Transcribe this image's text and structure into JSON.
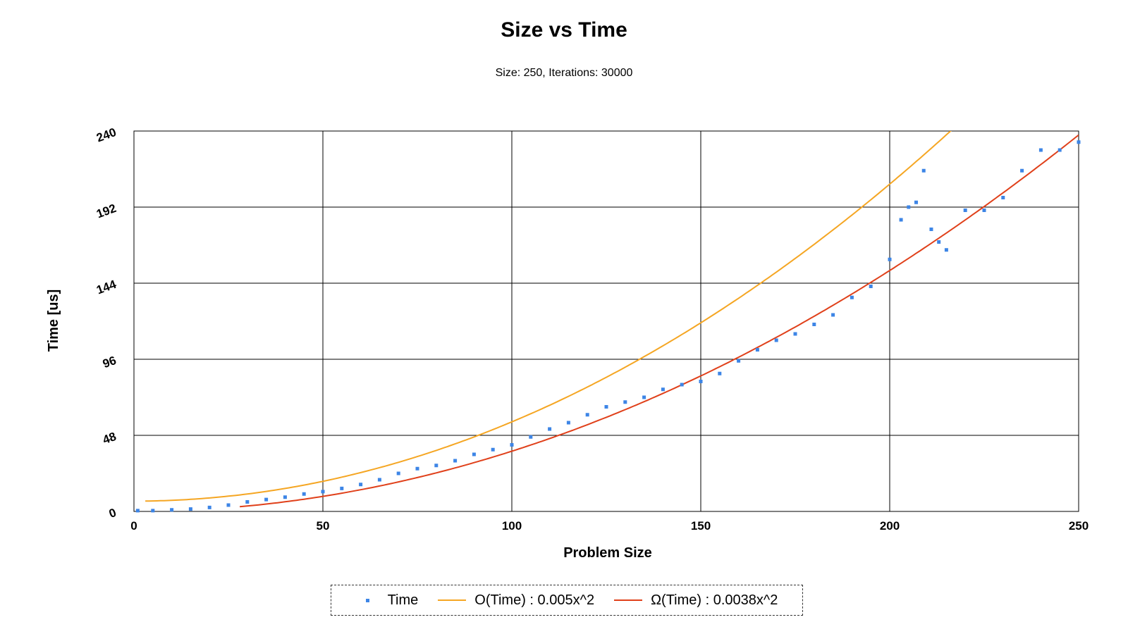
{
  "chart_data": {
    "type": "scatter",
    "title": "Size vs Time",
    "subtitle": "Size: 250, Iterations: 30000",
    "xlabel": "Problem Size",
    "ylabel": "Time [us]",
    "xlim": [
      0,
      250
    ],
    "ylim": [
      0,
      240
    ],
    "xticks": [
      0,
      50,
      100,
      150,
      200,
      250
    ],
    "yticks": [
      0,
      48,
      96,
      144,
      192,
      240
    ],
    "grid": true,
    "legend_position": "bottom-center",
    "colors": {
      "time": "#3d85e6",
      "upper": "#f5a623",
      "lower": "#e0401a"
    },
    "series": [
      {
        "name": "Time",
        "kind": "points",
        "x": [
          1,
          5,
          10,
          15,
          20,
          25,
          30,
          35,
          40,
          45,
          50,
          55,
          60,
          65,
          70,
          75,
          80,
          85,
          90,
          95,
          100,
          105,
          110,
          115,
          120,
          125,
          130,
          135,
          140,
          145,
          150,
          155,
          160,
          165,
          170,
          175,
          180,
          185,
          190,
          195,
          200,
          203,
          205,
          207,
          209,
          211,
          213,
          215,
          220,
          225,
          230,
          235,
          240,
          245,
          250
        ],
        "y": [
          0.5,
          0.5,
          1,
          1.5,
          2.5,
          4,
          6,
          7.5,
          9,
          11,
          12.5,
          14.5,
          17,
          20,
          24,
          27,
          29,
          32,
          36,
          39,
          42,
          47,
          52,
          56,
          61,
          66,
          69,
          72,
          77,
          80,
          82,
          87,
          95,
          102,
          108,
          112,
          118,
          124,
          135,
          142,
          159,
          184,
          192,
          195,
          215,
          178,
          170,
          165,
          190,
          190,
          198,
          215,
          228,
          228,
          233
        ]
      },
      {
        "name": "O(Time) : 0.005x^2",
        "kind": "line",
        "coef": 0.005,
        "offset": 6.5
      },
      {
        "name": "Ω(Time) : 0.0038x^2",
        "kind": "line",
        "coef": 0.0038,
        "offset": 0
      }
    ]
  }
}
